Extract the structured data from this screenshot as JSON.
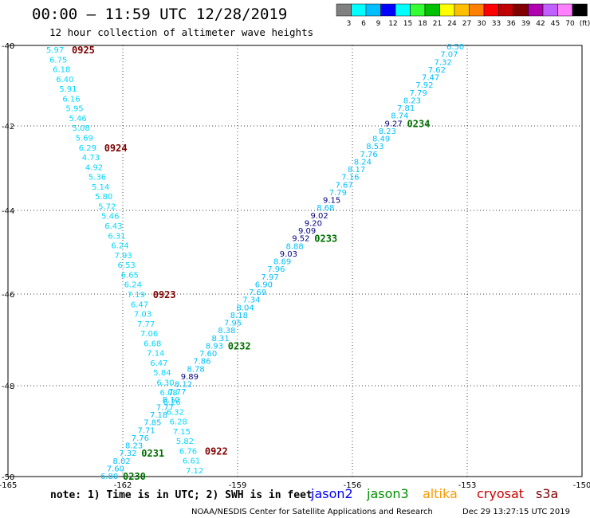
{
  "header": {
    "title": "00:00 – 11:59 UTC 12/28/2019",
    "subtitle": "12 hour collection of altimeter wave heights"
  },
  "legend": {
    "colors": [
      "#808080",
      "#00ffff",
      "#00bfff",
      "#0000ff",
      "#00ffff",
      "#33ff33",
      "#00c000",
      "#ffff00",
      "#ffbf00",
      "#ff8000",
      "#ff0000",
      "#c00000",
      "#800000",
      "#b000b0",
      "#c060ff",
      "#ff80ff",
      "#000000"
    ],
    "labels": [
      "3",
      "6",
      "9",
      "12",
      "15",
      "18",
      "21",
      "24",
      "27",
      "30",
      "33",
      "36",
      "39",
      "42",
      "45",
      "70",
      "(ft)"
    ]
  },
  "axes": {
    "x_ticks": [
      "-165",
      "-162",
      "-159",
      "-156",
      "-153",
      "-150"
    ],
    "y_ticks": [
      "-40",
      "-42",
      "-44",
      "-46",
      "-48",
      "-50"
    ]
  },
  "tracks": [
    {
      "name": "cryosat-descending",
      "color": "#00d8ff",
      "values": [
        "5.97",
        "6.75",
        "6.18",
        "6.40",
        "5.91",
        "6.16",
        "5.95",
        "5.46",
        "5.08",
        "5.69",
        "6.29",
        "4.73",
        "4.92",
        "5.36",
        "5.14",
        "5.80",
        "5.72",
        "5.46",
        "6.43",
        "6.31",
        "6.24",
        "7.93",
        "6.53",
        "6.65",
        "6.24",
        "7.19",
        "6.47",
        "7.03",
        "7.77",
        "7.06",
        "6.68",
        "7.14",
        "6.47",
        "5.84",
        "6.30",
        "6.08",
        "6.26",
        "6.32",
        "6.28",
        "7.15",
        "5.82",
        "6.76",
        "6.61",
        "7.12"
      ],
      "highlight": {},
      "times": [
        {
          "label": "0925",
          "at": 0
        },
        {
          "label": "0924",
          "at": 10
        },
        {
          "label": "0923",
          "at": 25
        },
        {
          "label": "0922",
          "at": 41
        }
      ]
    },
    {
      "name": "jason3-ascending",
      "color": "#00c0ff",
      "values": [
        "6.80",
        "7.60",
        "8.02",
        "7.32",
        "8.23",
        "7.76",
        "7.71",
        "7.85",
        "7.18",
        "7.77",
        "8.10",
        "7.77",
        "8.12",
        "9.89",
        "8.78",
        "7.86",
        "7.60",
        "8.93",
        "8.31",
        "8.38",
        "7.95",
        "8.18",
        "8.04",
        "7.34",
        "7.69",
        "6.90",
        "7.97",
        "7.96",
        "8.69",
        "9.03",
        "8.88",
        "9.52",
        "9.09",
        "9.20",
        "9.02",
        "8.68",
        "9.15",
        "7.79",
        "7.67",
        "7.16",
        "8.17",
        "8.24",
        "7.76",
        "8.53",
        "8.49",
        "8.23",
        "9.27",
        "8.74",
        "7.81",
        "8.23",
        "7.79",
        "7.92",
        "7.47",
        "7.62",
        "7.32",
        "7.07",
        "6.50"
      ],
      "highlight": {
        "13": "#000080",
        "29": "#000080",
        "31": "#000080",
        "32": "#000080",
        "33": "#000080",
        "34": "#000080",
        "36": "#000080",
        "46": "#000080"
      },
      "times": [
        {
          "label": "0230",
          "at": 0
        },
        {
          "label": "0231",
          "at": 3
        },
        {
          "label": "0232",
          "at": 17
        },
        {
          "label": "0233",
          "at": 31
        },
        {
          "label": "0234",
          "at": 46
        }
      ]
    }
  ],
  "note": {
    "text": "note: 1) Time is in UTC; 2) SWH is in feet",
    "satellites": [
      {
        "name": "jason2",
        "color": "#0000ff"
      },
      {
        "name": "jason3",
        "color": "#009000"
      },
      {
        "name": "altika",
        "color": "#ff9900"
      },
      {
        "name": "cryosat",
        "color": "#cc0000"
      },
      {
        "name": "s3a",
        "color": "#800000"
      }
    ]
  },
  "footer": {
    "credit": "NOAA/NESDIS Center for Satellite Applications and Research",
    "timestamp": "Dec 29 13:27:15 UTC 2019"
  }
}
